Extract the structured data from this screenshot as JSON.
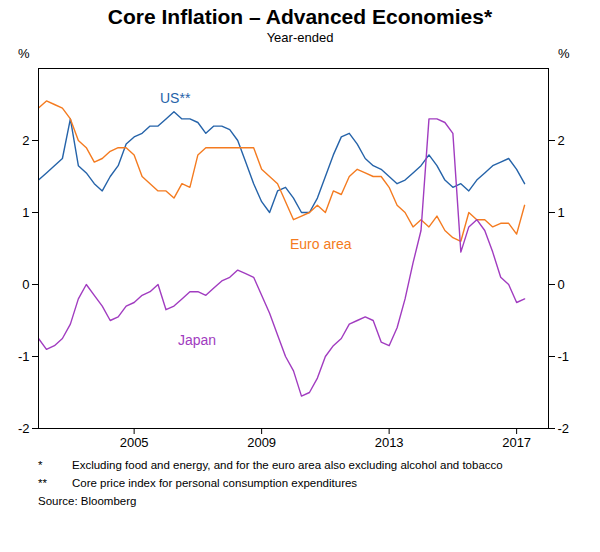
{
  "chart_data": {
    "type": "line",
    "title": "Core Inflation – Advanced Economies*",
    "subtitle": "Year-ended",
    "ylabel": "%",
    "grid": false,
    "x": [
      2002,
      2002.25,
      2002.5,
      2002.75,
      2003,
      2003.25,
      2003.5,
      2003.75,
      2004,
      2004.25,
      2004.5,
      2004.75,
      2005,
      2005.25,
      2005.5,
      2005.75,
      2006,
      2006.25,
      2006.5,
      2006.75,
      2007,
      2007.25,
      2007.5,
      2007.75,
      2008,
      2008.25,
      2008.5,
      2008.75,
      2009,
      2009.25,
      2009.5,
      2009.75,
      2010,
      2010.25,
      2010.5,
      2010.75,
      2011,
      2011.25,
      2011.5,
      2011.75,
      2012,
      2012.25,
      2012.5,
      2012.75,
      2013,
      2013.25,
      2013.5,
      2013.75,
      2014,
      2014.25,
      2014.5,
      2014.75,
      2015,
      2015.25,
      2015.5,
      2015.75,
      2016,
      2016.25,
      2016.5,
      2016.75,
      2017,
      2017.25
    ],
    "xlim": [
      2002,
      2018
    ],
    "xticks": [
      2005,
      2009,
      2013,
      2017
    ],
    "ylim": [
      -2,
      3
    ],
    "yticks": [
      -2,
      -1,
      0,
      1,
      2
    ],
    "series": [
      {
        "name": "US**",
        "color": "#2563a9",
        "values": [
          1.45,
          1.55,
          1.65,
          1.75,
          2.3,
          1.65,
          1.55,
          1.4,
          1.3,
          1.5,
          1.65,
          1.95,
          2.05,
          2.1,
          2.2,
          2.2,
          2.3,
          2.4,
          2.3,
          2.3,
          2.25,
          2.1,
          2.2,
          2.2,
          2.15,
          2.0,
          1.7,
          1.4,
          1.15,
          1.0,
          1.3,
          1.35,
          1.2,
          1.0,
          1.0,
          1.2,
          1.5,
          1.8,
          2.05,
          2.1,
          1.95,
          1.75,
          1.65,
          1.6,
          1.5,
          1.4,
          1.45,
          1.55,
          1.65,
          1.8,
          1.65,
          1.45,
          1.35,
          1.4,
          1.3,
          1.45,
          1.55,
          1.65,
          1.7,
          1.75,
          1.6,
          1.4
        ]
      },
      {
        "name": "Euro area",
        "color": "#f47b20",
        "values": [
          2.45,
          2.55,
          2.5,
          2.45,
          2.3,
          2.0,
          1.9,
          1.7,
          1.75,
          1.85,
          1.9,
          1.9,
          1.8,
          1.5,
          1.4,
          1.3,
          1.3,
          1.2,
          1.4,
          1.35,
          1.8,
          1.9,
          1.9,
          1.9,
          1.9,
          1.9,
          1.9,
          1.9,
          1.6,
          1.5,
          1.4,
          1.15,
          0.9,
          0.95,
          1.0,
          1.1,
          1.0,
          1.3,
          1.25,
          1.5,
          1.6,
          1.55,
          1.5,
          1.5,
          1.35,
          1.1,
          1.0,
          0.8,
          0.9,
          0.8,
          0.95,
          0.75,
          0.65,
          0.6,
          1.0,
          0.9,
          0.9,
          0.8,
          0.85,
          0.85,
          0.7,
          1.1
        ]
      },
      {
        "name": "Japan",
        "color": "#a13cc0",
        "values": [
          -0.75,
          -0.9,
          -0.85,
          -0.75,
          -0.55,
          -0.2,
          0.0,
          -0.15,
          -0.3,
          -0.5,
          -0.45,
          -0.3,
          -0.25,
          -0.15,
          -0.1,
          0.0,
          -0.35,
          -0.3,
          -0.2,
          -0.1,
          -0.1,
          -0.15,
          -0.05,
          0.05,
          0.1,
          0.2,
          0.15,
          0.1,
          -0.15,
          -0.4,
          -0.7,
          -1.0,
          -1.2,
          -1.55,
          -1.5,
          -1.3,
          -1.0,
          -0.85,
          -0.75,
          -0.55,
          -0.5,
          -0.45,
          -0.5,
          -0.8,
          -0.85,
          -0.6,
          -0.2,
          0.3,
          0.75,
          2.3,
          2.3,
          2.25,
          2.1,
          0.45,
          0.8,
          0.9,
          0.75,
          0.45,
          0.1,
          0.0,
          -0.25,
          -0.2
        ]
      }
    ],
    "notes": [
      {
        "mark": "*",
        "text": "Excluding food and energy, and for the euro area also excluding alcohol and tobacco"
      },
      {
        "mark": "**",
        "text": "Core price index for personal consumption expenditures"
      }
    ],
    "source": "Source: Bloomberg"
  }
}
